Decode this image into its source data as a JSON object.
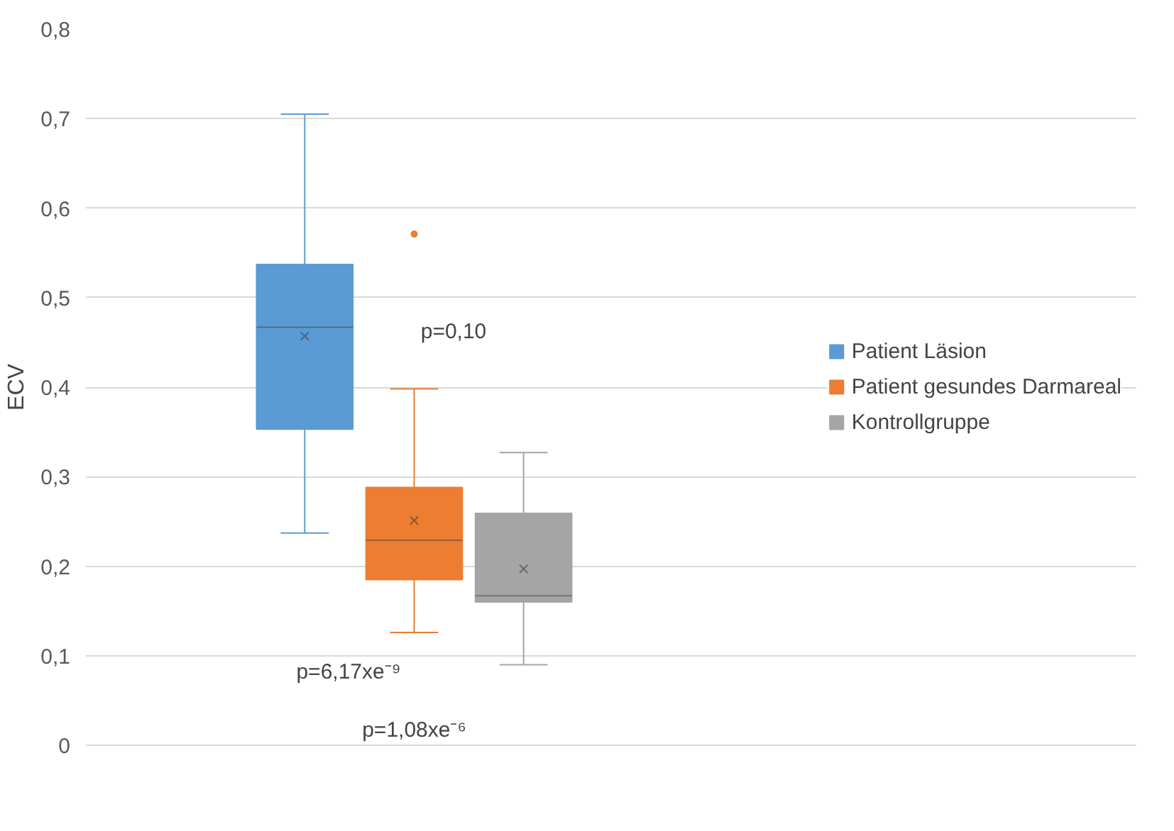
{
  "chart_data": {
    "type": "box",
    "ylabel": "ECV",
    "categories": [
      null
    ],
    "series": [
      {
        "name": "Patient Läsion",
        "color": "#5b9bd5",
        "boxes": [
          {
            "low": 0.237,
            "q1": 0.353,
            "median": 0.467,
            "q3": 0.537,
            "high": 0.705,
            "mean": 0.457
          }
        ]
      },
      {
        "name": "Patient gesundes Darmareal",
        "color": "#ed7d31",
        "boxes": [
          {
            "low": 0.126,
            "q1": 0.185,
            "median": 0.229,
            "q3": 0.288,
            "high": 0.398,
            "mean": 0.251,
            "outliers": [
              0.571
            ]
          }
        ]
      },
      {
        "name": "Kontrollgruppe",
        "color": "#a5a5a5",
        "boxes": [
          {
            "low": 0.09,
            "q1": 0.16,
            "median": 0.167,
            "q3": 0.259,
            "high": 0.327,
            "mean": 0.197
          }
        ]
      }
    ],
    "ylim": [
      0,
      0.8
    ],
    "yticks": [
      {
        "value": 0,
        "label": "0"
      },
      {
        "value": 0.1,
        "label": "0,1"
      },
      {
        "value": 0.2,
        "label": "0,2"
      },
      {
        "value": 0.3,
        "label": "0,3"
      },
      {
        "value": 0.4,
        "label": "0,4"
      },
      {
        "value": 0.5,
        "label": "0,5"
      },
      {
        "value": 0.6,
        "label": "0,6"
      },
      {
        "value": 0.7,
        "label": "0,7"
      },
      {
        "value": 0.8,
        "label": "0,8"
      }
    ],
    "grid": "y",
    "legend": "right",
    "annotations": [
      "p=0,10",
      "p=6,17xe⁻⁹",
      "p=1,08xe⁻⁶"
    ]
  }
}
